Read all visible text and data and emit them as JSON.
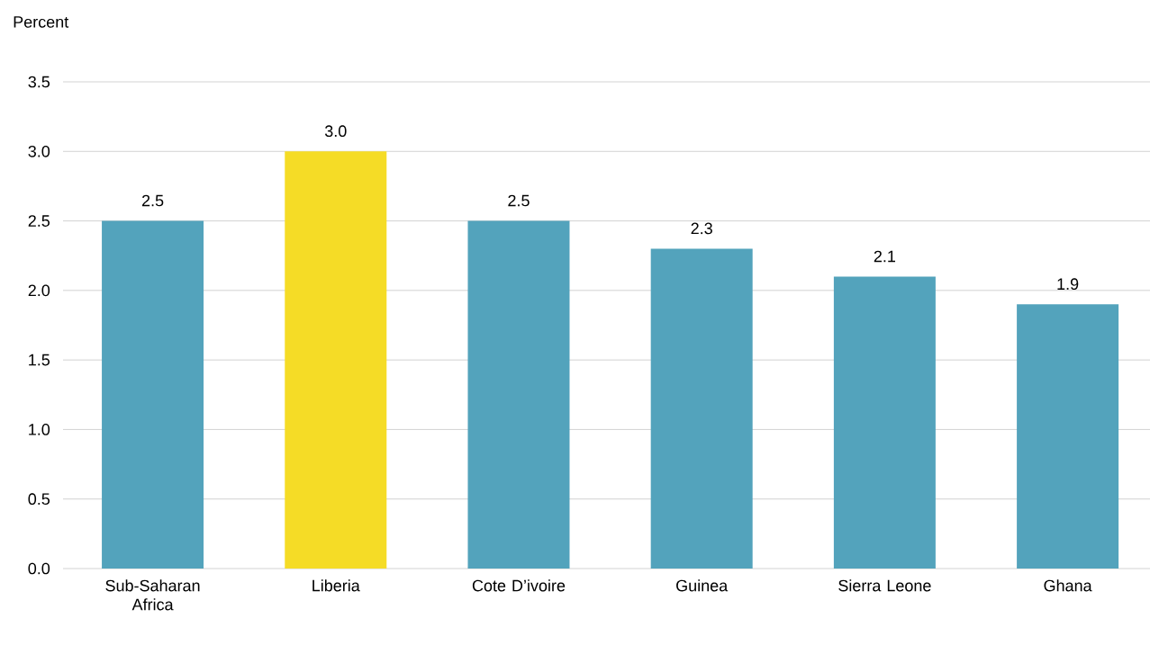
{
  "chart_data": {
    "type": "bar",
    "ylabel": "Percent",
    "categories": [
      "Sub-Saharan Africa",
      "Liberia",
      "Cote D’ivoire",
      "Guinea",
      "Sierra Leone",
      "Ghana"
    ],
    "values": [
      2.5,
      3.0,
      2.5,
      2.3,
      2.1,
      1.9
    ],
    "value_labels": [
      "2.5",
      "3.0",
      "2.5",
      "2.3",
      "2.1",
      "1.9"
    ],
    "colors": [
      "#53a3bc",
      "#f5dc26",
      "#53a3bc",
      "#53a3bc",
      "#53a3bc",
      "#53a3bc"
    ],
    "ylim": [
      0,
      3.5
    ],
    "yticks": [
      {
        "value": 0,
        "label": "0.0"
      },
      {
        "value": 0.5,
        "label": "0.5"
      },
      {
        "value": 1,
        "label": "1.0"
      },
      {
        "value": 1.5,
        "label": "1.5"
      },
      {
        "value": 2,
        "label": "2.0"
      },
      {
        "value": 2.5,
        "label": "2.5"
      },
      {
        "value": 3,
        "label": "3.0"
      },
      {
        "value": 3.5,
        "label": "3.5"
      }
    ],
    "grid": "y"
  }
}
